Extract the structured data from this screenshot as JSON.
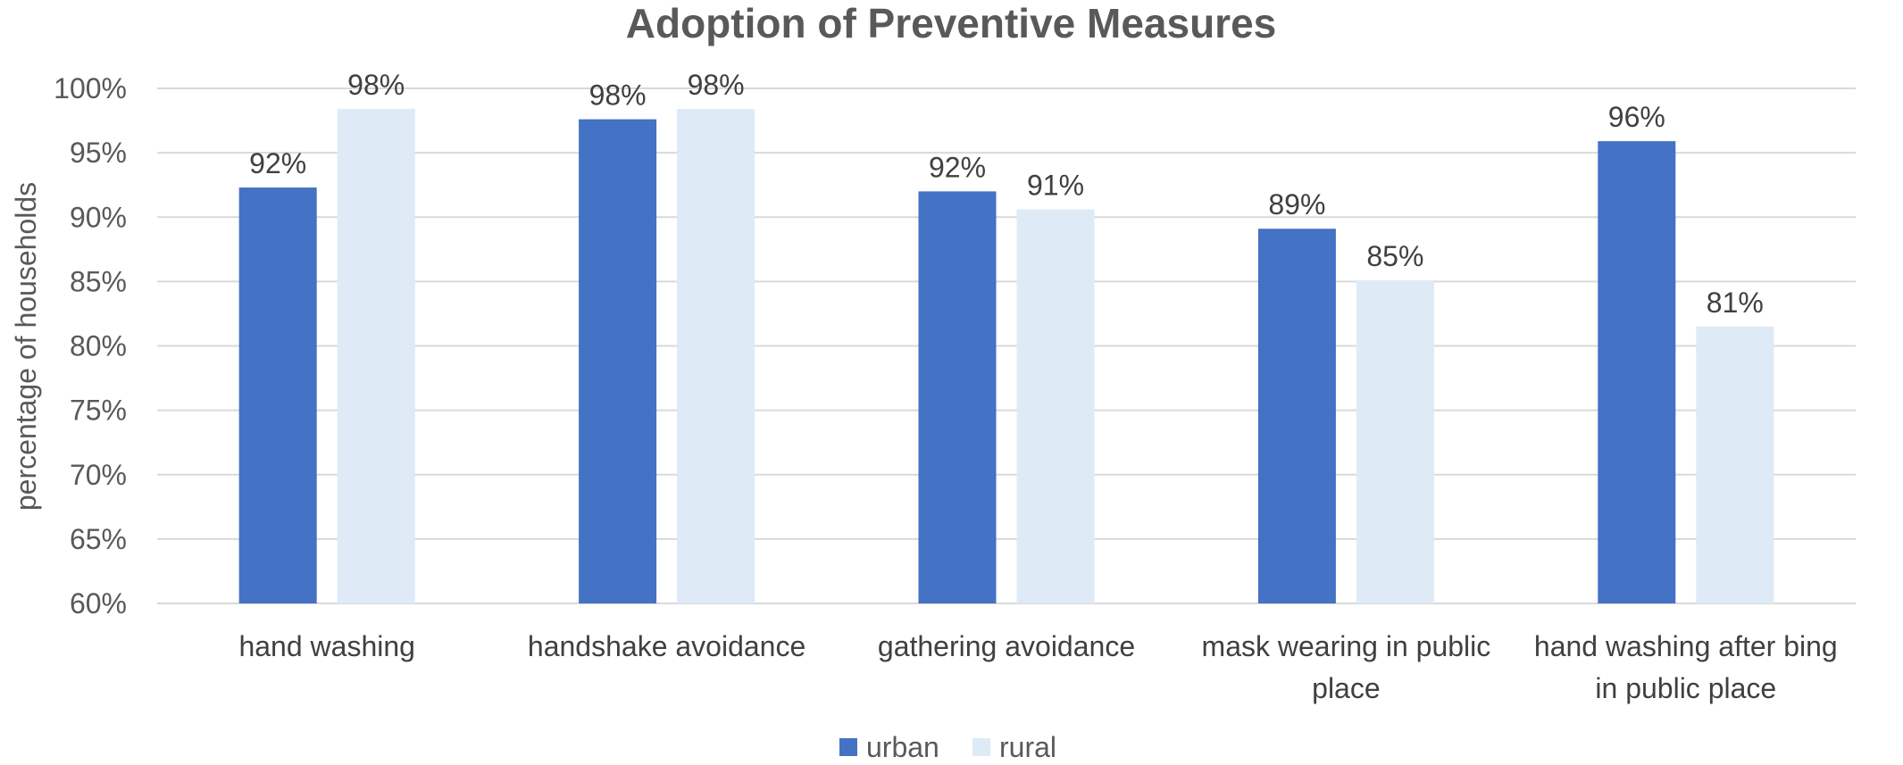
{
  "chart_data": {
    "type": "bar",
    "title": "Adoption of Preventive Measures",
    "xlabel": "",
    "ylabel": "percentage of households",
    "ylim": [
      0.6,
      1.0
    ],
    "y_ticks": [
      "60%",
      "65%",
      "70%",
      "75%",
      "80%",
      "85%",
      "90%",
      "95%",
      "100%"
    ],
    "y_tick_values": [
      0.6,
      0.65,
      0.7,
      0.75,
      0.8,
      0.85,
      0.9,
      0.95,
      1.0
    ],
    "grid": true,
    "legend_position": "bottom",
    "categories": [
      [
        "hand washing"
      ],
      [
        "handshake avoidance"
      ],
      [
        "gathering avoidance"
      ],
      [
        "mask wearing in public",
        "place"
      ],
      [
        "hand washing after bing",
        "in public place"
      ]
    ],
    "series": [
      {
        "name": "urban",
        "color": "#4472C4",
        "values": [
          0.923,
          0.976,
          0.92,
          0.891,
          0.959
        ],
        "labels": [
          "92%",
          "98%",
          "92%",
          "89%",
          "96%"
        ]
      },
      {
        "name": "rural",
        "color": "#DEEAF6",
        "values": [
          0.984,
          0.984,
          0.906,
          0.851,
          0.815
        ],
        "labels": [
          "98%",
          "98%",
          "91%",
          "85%",
          "81%"
        ]
      }
    ]
  }
}
